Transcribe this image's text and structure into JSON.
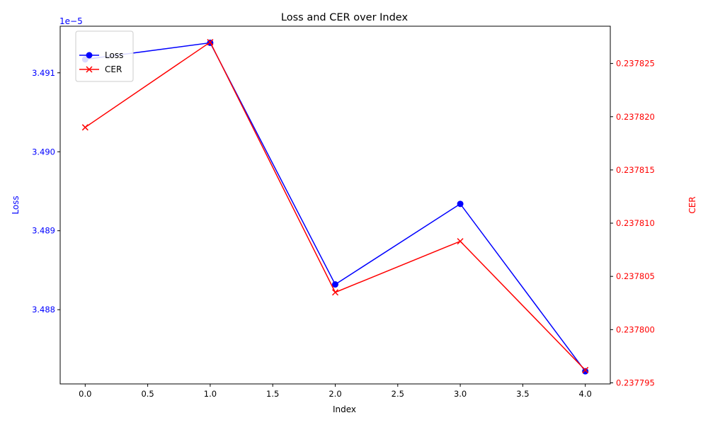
{
  "chart_data": {
    "type": "line",
    "title": "Loss and CER over Index",
    "xlabel": "Index",
    "x": [
      0,
      1,
      2,
      3,
      4
    ],
    "xlim": [
      -0.2,
      4.2
    ],
    "xticks": [
      0.0,
      0.5,
      1.0,
      1.5,
      2.0,
      2.5,
      3.0,
      3.5,
      4.0
    ],
    "xtick_labels": [
      "0.0",
      "0.5",
      "1.0",
      "1.5",
      "2.0",
      "2.5",
      "3.0",
      "3.5",
      "4.0"
    ],
    "left_axis": {
      "label": "Loss",
      "color": "#0000ff",
      "offset_text": "1e−5",
      "ylim": [
        3.48706,
        3.49159
      ],
      "ticks": [
        3.488,
        3.489,
        3.49,
        3.491
      ],
      "tick_labels": [
        "3.488",
        "3.489",
        "3.490",
        "3.491"
      ]
    },
    "right_axis": {
      "label": "CER",
      "color": "#ff0000",
      "ylim": [
        0.2377949,
        0.2378285
      ],
      "ticks": [
        0.237795,
        0.2378,
        0.237805,
        0.23781,
        0.237815,
        0.23782,
        0.237825
      ],
      "tick_labels": [
        "0.237795",
        "0.237800",
        "0.237805",
        "0.237810",
        "0.237815",
        "0.237820",
        "0.237825"
      ]
    },
    "series": [
      {
        "name": "Loss",
        "axis": "left",
        "color": "#0000ff",
        "marker": "circle",
        "values": [
          3.49117,
          3.49138,
          3.48832,
          3.48934,
          3.48722
        ]
      },
      {
        "name": "CER",
        "axis": "right",
        "color": "#ff0000",
        "marker": "x",
        "values": [
          0.237819,
          0.237827,
          0.2378035,
          0.2378083,
          0.2377962
        ]
      }
    ],
    "legend_position": "upper-left",
    "grid": false
  }
}
